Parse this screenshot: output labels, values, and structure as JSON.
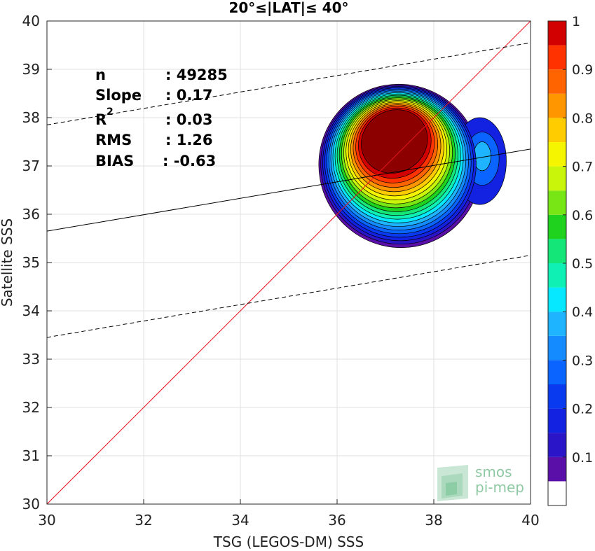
{
  "chart_data": {
    "type": "contour",
    "title": "20°≤|LAT|≤ 40°",
    "xlabel": "TSG (LEGOS-DM) SSS",
    "ylabel": "Satellite SSS",
    "xlim": [
      30,
      40
    ],
    "ylim": [
      30,
      40
    ],
    "xticks": [
      "30",
      "32",
      "34",
      "36",
      "38",
      "40"
    ],
    "yticks": [
      "30",
      "31",
      "32",
      "33",
      "34",
      "35",
      "36",
      "37",
      "38",
      "39",
      "40"
    ],
    "grid": true,
    "stats": {
      "n_label": "n",
      "n_value": ": 49285",
      "slope_label": "Slope",
      "slope_value": ": 0.17",
      "r2_label": "R",
      "r2_sup": "2",
      "r2_value": ": 0.03",
      "rms_label": "RMS",
      "rms_value": ": 1.26",
      "bias_label": "BIAS",
      "bias_value": ": -0.63"
    },
    "lines": [
      {
        "name": "identity",
        "style": "solid",
        "color": "#e8141c",
        "x": [
          30,
          40
        ],
        "y": [
          30,
          40
        ]
      },
      {
        "name": "regression",
        "style": "solid",
        "color": "#000000",
        "x": [
          30,
          40
        ],
        "y": [
          35.65,
          37.35
        ]
      },
      {
        "name": "upper-bound",
        "style": "dashed",
        "color": "#000000",
        "x": [
          30,
          40
        ],
        "y": [
          37.85,
          39.55
        ]
      },
      {
        "name": "lower-bound",
        "style": "dashed",
        "color": "#000000",
        "x": [
          30,
          40
        ],
        "y": [
          33.45,
          35.15
        ]
      }
    ],
    "density_peak": {
      "x": 37.3,
      "y": 37.2
    },
    "colorbar": {
      "range": [
        0,
        1
      ],
      "ticks": [
        "0.1",
        "0.2",
        "0.3",
        "0.4",
        "0.5",
        "0.6",
        "0.7",
        "0.8",
        "0.9",
        "1"
      ],
      "levels": [
        0,
        0.05,
        0.1,
        0.15,
        0.2,
        0.25,
        0.3,
        0.35,
        0.4,
        0.45,
        0.5,
        0.55,
        0.6,
        0.65,
        0.7,
        0.75,
        0.8,
        0.85,
        0.9,
        0.95,
        1
      ],
      "colors": [
        "#ffffff",
        "#5a0fa8",
        "#2a16c8",
        "#1322e0",
        "#0a3af0",
        "#0a64ff",
        "#148cff",
        "#1eb4ff",
        "#05e8ff",
        "#0ef0b4",
        "#14e678",
        "#1ed21e",
        "#78e614",
        "#c8f50a",
        "#f5f500",
        "#ffcc00",
        "#ff9600",
        "#ff6400",
        "#ff3200",
        "#d20000",
        "#8c0000"
      ]
    },
    "watermark": {
      "line1": "smos",
      "line2": "pi-mep"
    }
  }
}
